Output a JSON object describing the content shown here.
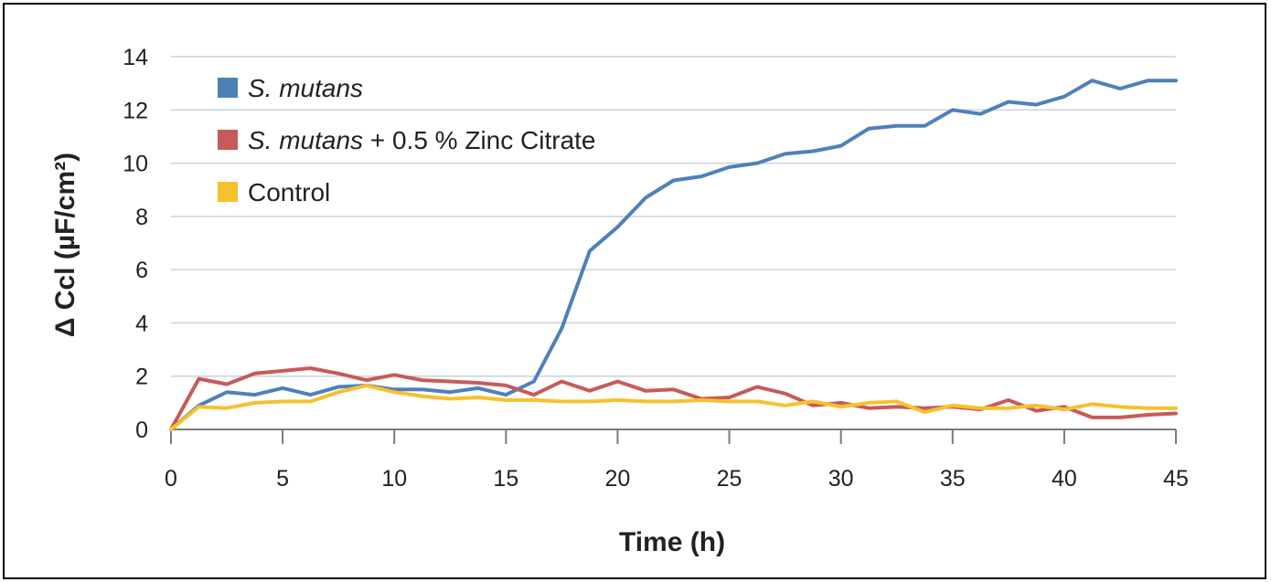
{
  "chart_data": {
    "type": "line",
    "xlabel": "Time (h)",
    "ylabel": "Δ Ccl (µF/cm²)",
    "xlim": [
      0,
      45
    ],
    "ylim": [
      0,
      14
    ],
    "x_ticks": [
      0,
      5,
      10,
      15,
      20,
      25,
      30,
      35,
      40,
      45
    ],
    "y_ticks": [
      0,
      2,
      4,
      6,
      8,
      10,
      12,
      14
    ],
    "grid": "horizontal",
    "legend_position": "top-left",
    "x": [
      0,
      1.25,
      2.5,
      3.75,
      5,
      6.25,
      7.5,
      8.75,
      10,
      11.25,
      12.5,
      13.75,
      15,
      16.25,
      17.5,
      18.75,
      20,
      21.25,
      22.5,
      23.75,
      25,
      26.25,
      27.5,
      28.75,
      30,
      31.25,
      32.5,
      33.75,
      35,
      36.25,
      37.5,
      38.75,
      40,
      41.25,
      42.5,
      43.75,
      45
    ],
    "series": [
      {
        "name": "S. mutans",
        "color": "#4e81b8",
        "values": [
          0,
          0.9,
          1.4,
          1.3,
          1.55,
          1.3,
          1.6,
          1.65,
          1.5,
          1.5,
          1.4,
          1.55,
          1.3,
          1.8,
          3.8,
          6.7,
          7.6,
          8.7,
          9.35,
          9.5,
          9.85,
          10.0,
          10.35,
          10.45,
          10.65,
          11.3,
          11.4,
          11.4,
          12.0,
          11.85,
          12.3,
          12.2,
          12.5,
          13.1,
          12.8,
          13.1,
          13.1
        ]
      },
      {
        "name": "S. mutans + 0.5 % Zinc Citrate",
        "color": "#c85a5a",
        "values": [
          0,
          1.9,
          1.7,
          2.1,
          2.2,
          2.3,
          2.1,
          1.85,
          2.05,
          1.85,
          1.8,
          1.75,
          1.65,
          1.3,
          1.8,
          1.45,
          1.8,
          1.45,
          1.5,
          1.15,
          1.2,
          1.6,
          1.35,
          0.9,
          1.0,
          0.8,
          0.85,
          0.8,
          0.85,
          0.75,
          1.1,
          0.7,
          0.85,
          0.45,
          0.45,
          0.55,
          0.6
        ]
      },
      {
        "name": "Control",
        "color": "#f5c12e",
        "values": [
          0,
          0.85,
          0.8,
          1.0,
          1.05,
          1.05,
          1.4,
          1.65,
          1.4,
          1.25,
          1.15,
          1.2,
          1.1,
          1.1,
          1.05,
          1.05,
          1.1,
          1.05,
          1.05,
          1.1,
          1.05,
          1.05,
          0.9,
          1.05,
          0.85,
          1.0,
          1.05,
          0.65,
          0.9,
          0.8,
          0.8,
          0.9,
          0.75,
          0.95,
          0.85,
          0.8,
          0.8
        ]
      }
    ]
  },
  "legend": [
    {
      "italic": "S. mutans",
      "rest": ""
    },
    {
      "italic": "S. mutans",
      "rest": " + 0.5 % Zinc Citrate"
    },
    {
      "italic": "",
      "rest": "Control"
    }
  ]
}
